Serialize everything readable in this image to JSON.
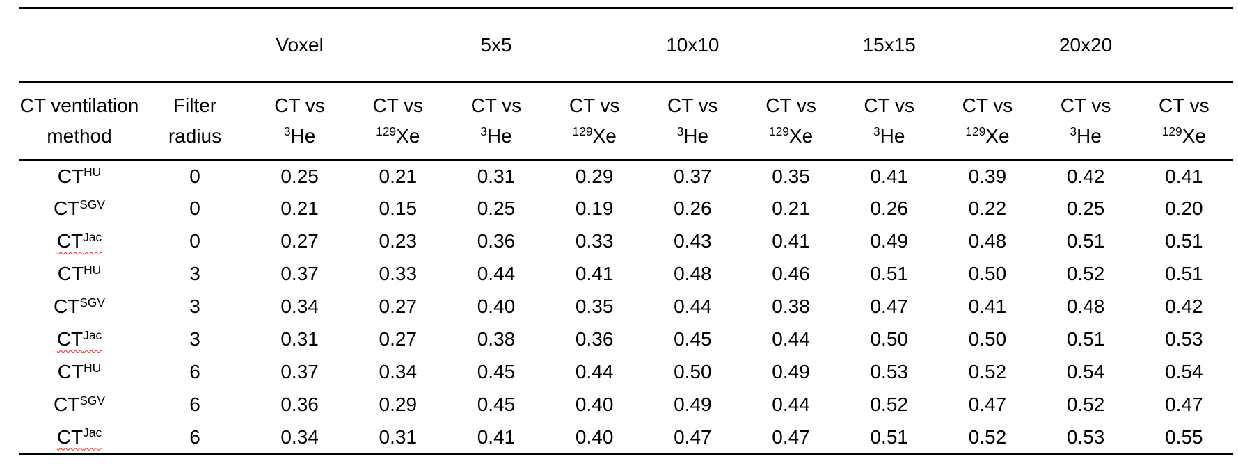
{
  "table": {
    "group_headers": [
      {
        "label": "Voxel"
      },
      {
        "label": "5x5"
      },
      {
        "label": "10x10"
      },
      {
        "label": "15x15"
      },
      {
        "label": "20x20"
      }
    ],
    "col_headers": {
      "method_line1": "CT ventilation",
      "method_line2": "method",
      "filter_line1": "Filter",
      "filter_line2": "radius",
      "pair": {
        "line1": "CT vs",
        "gases": [
          {
            "mass": "3",
            "symbol": "He"
          },
          {
            "mass": "129",
            "symbol": "Xe"
          }
        ]
      }
    },
    "rows": [
      {
        "method": {
          "base": "CT",
          "sup": "HU",
          "spellcheck": false
        },
        "filter": "0",
        "values": [
          "0.25",
          "0.21",
          "0.31",
          "0.29",
          "0.37",
          "0.35",
          "0.41",
          "0.39",
          "0.42",
          "0.41"
        ]
      },
      {
        "method": {
          "base": "CT",
          "sup": "SGV",
          "spellcheck": false
        },
        "filter": "0",
        "values": [
          "0.21",
          "0.15",
          "0.25",
          "0.19",
          "0.26",
          "0.21",
          "0.26",
          "0.22",
          "0.25",
          "0.20"
        ]
      },
      {
        "method": {
          "base": "CT",
          "sup": "Jac",
          "spellcheck": true
        },
        "filter": "0",
        "values": [
          "0.27",
          "0.23",
          "0.36",
          "0.33",
          "0.43",
          "0.41",
          "0.49",
          "0.48",
          "0.51",
          "0.51"
        ]
      },
      {
        "method": {
          "base": "CT",
          "sup": "HU",
          "spellcheck": false
        },
        "filter": "3",
        "values": [
          "0.37",
          "0.33",
          "0.44",
          "0.41",
          "0.48",
          "0.46",
          "0.51",
          "0.50",
          "0.52",
          "0.51"
        ]
      },
      {
        "method": {
          "base": "CT",
          "sup": "SGV",
          "spellcheck": false
        },
        "filter": "3",
        "values": [
          "0.34",
          "0.27",
          "0.40",
          "0.35",
          "0.44",
          "0.38",
          "0.47",
          "0.41",
          "0.48",
          "0.42"
        ]
      },
      {
        "method": {
          "base": "CT",
          "sup": "Jac",
          "spellcheck": true
        },
        "filter": "3",
        "values": [
          "0.31",
          "0.27",
          "0.38",
          "0.36",
          "0.45",
          "0.44",
          "0.50",
          "0.50",
          "0.51",
          "0.53"
        ]
      },
      {
        "method": {
          "base": "CT",
          "sup": "HU",
          "spellcheck": false
        },
        "filter": "6",
        "values": [
          "0.37",
          "0.34",
          "0.45",
          "0.44",
          "0.50",
          "0.49",
          "0.53",
          "0.52",
          "0.54",
          "0.54"
        ]
      },
      {
        "method": {
          "base": "CT",
          "sup": "SGV",
          "spellcheck": false
        },
        "filter": "6",
        "values": [
          "0.36",
          "0.29",
          "0.45",
          "0.40",
          "0.49",
          "0.44",
          "0.52",
          "0.47",
          "0.52",
          "0.47"
        ]
      },
      {
        "method": {
          "base": "CT",
          "sup": "Jac",
          "spellcheck": true
        },
        "filter": "6",
        "values": [
          "0.34",
          "0.31",
          "0.41",
          "0.40",
          "0.47",
          "0.47",
          "0.51",
          "0.52",
          "0.53",
          "0.55"
        ]
      }
    ]
  },
  "colors": {
    "text": "#000000",
    "rule": "#000000",
    "spellcheck_squiggle": "#ff2015"
  }
}
